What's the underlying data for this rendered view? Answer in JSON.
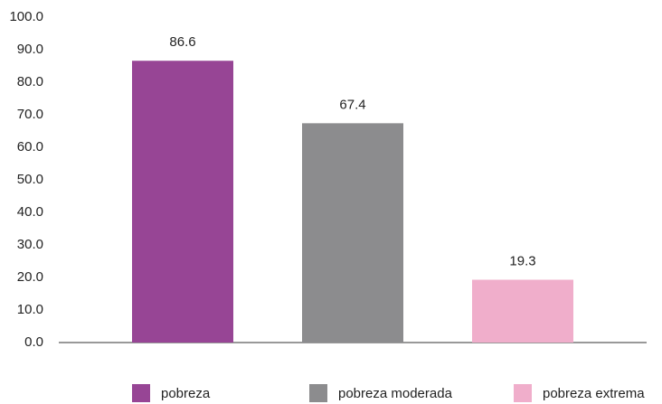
{
  "chart_data": {
    "type": "bar",
    "categories": [
      null
    ],
    "series": [
      {
        "name": "pobreza",
        "color": "#974595",
        "values": [
          86.6
        ]
      },
      {
        "name": "pobreza moderada",
        "color": "#8c8c8e",
        "values": [
          67.4
        ]
      },
      {
        "name": "pobreza extrema",
        "color": "#f0aecb",
        "values": [
          19.3
        ]
      }
    ],
    "ylim": [
      0,
      100
    ],
    "yticks": [
      {
        "value": 0,
        "label": "0.0"
      },
      {
        "value": 10,
        "label": "10.0"
      },
      {
        "value": 20,
        "label": "20.0"
      },
      {
        "value": 30,
        "label": "30.0"
      },
      {
        "value": 40,
        "label": "40.0"
      },
      {
        "value": 50,
        "label": "50.0"
      },
      {
        "value": 60,
        "label": "60.0"
      },
      {
        "value": 70,
        "label": "70.0"
      },
      {
        "value": 80,
        "label": "80.0"
      },
      {
        "value": 90,
        "label": "90.0"
      },
      {
        "value": 100,
        "label": "100.0"
      }
    ],
    "grid": false,
    "legend": "bottom"
  }
}
